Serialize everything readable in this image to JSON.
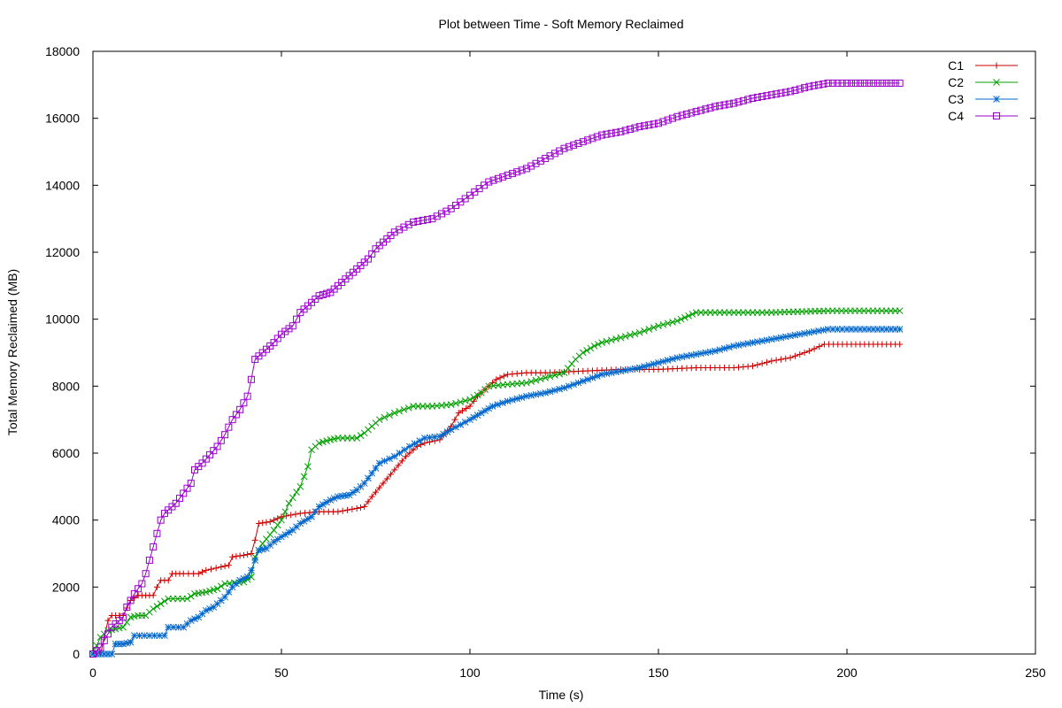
{
  "chart_data": {
    "type": "line",
    "title": "Plot between Time - Soft Memory Reclaimed",
    "xlabel": "Time (s)",
    "ylabel": "Total Memory Reclaimed (MB)",
    "xlim": [
      0,
      250
    ],
    "ylim": [
      0,
      18000
    ],
    "xticks": [
      0,
      50,
      100,
      150,
      200,
      250
    ],
    "yticks": [
      0,
      2000,
      4000,
      6000,
      8000,
      10000,
      12000,
      14000,
      16000,
      18000
    ],
    "grid": false,
    "legend_position": "top-right",
    "series": [
      {
        "name": "C1",
        "color": "#cc0000",
        "marker": "plus",
        "points": [
          [
            0,
            0
          ],
          [
            2,
            0
          ],
          [
            3,
            500
          ],
          [
            4,
            1000
          ],
          [
            5,
            1150
          ],
          [
            7,
            1150
          ],
          [
            8,
            1150
          ],
          [
            10,
            1600
          ],
          [
            12,
            1750
          ],
          [
            14,
            1750
          ],
          [
            16,
            1750
          ],
          [
            17,
            2000
          ],
          [
            18,
            2200
          ],
          [
            20,
            2200
          ],
          [
            21,
            2400
          ],
          [
            24,
            2400
          ],
          [
            28,
            2400
          ],
          [
            30,
            2500
          ],
          [
            34,
            2600
          ],
          [
            36,
            2650
          ],
          [
            37,
            2900
          ],
          [
            40,
            2950
          ],
          [
            42,
            3000
          ],
          [
            43,
            3400
          ],
          [
            44,
            3900
          ],
          [
            47,
            3950
          ],
          [
            50,
            4100
          ],
          [
            55,
            4200
          ],
          [
            60,
            4250
          ],
          [
            65,
            4250
          ],
          [
            70,
            4350
          ],
          [
            72,
            4400
          ],
          [
            74,
            4700
          ],
          [
            77,
            5100
          ],
          [
            80,
            5500
          ],
          [
            83,
            5900
          ],
          [
            86,
            6200
          ],
          [
            88,
            6300
          ],
          [
            92,
            6400
          ],
          [
            95,
            6800
          ],
          [
            97,
            7200
          ],
          [
            100,
            7400
          ],
          [
            102,
            7700
          ],
          [
            105,
            8000
          ],
          [
            107,
            8200
          ],
          [
            110,
            8350
          ],
          [
            115,
            8400
          ],
          [
            120,
            8400
          ],
          [
            130,
            8450
          ],
          [
            140,
            8500
          ],
          [
            150,
            8500
          ],
          [
            160,
            8550
          ],
          [
            170,
            8550
          ],
          [
            175,
            8600
          ],
          [
            180,
            8750
          ],
          [
            185,
            8850
          ],
          [
            190,
            9050
          ],
          [
            194,
            9250
          ],
          [
            200,
            9250
          ],
          [
            214,
            9250
          ]
        ]
      },
      {
        "name": "C2",
        "color": "#00a000",
        "marker": "x",
        "points": [
          [
            0,
            0
          ],
          [
            2,
            500
          ],
          [
            4,
            700
          ],
          [
            6,
            750
          ],
          [
            8,
            800
          ],
          [
            10,
            1100
          ],
          [
            12,
            1150
          ],
          [
            14,
            1150
          ],
          [
            16,
            1350
          ],
          [
            18,
            1500
          ],
          [
            20,
            1650
          ],
          [
            25,
            1650
          ],
          [
            27,
            1800
          ],
          [
            30,
            1850
          ],
          [
            33,
            1950
          ],
          [
            35,
            2100
          ],
          [
            40,
            2150
          ],
          [
            42,
            2300
          ],
          [
            43,
            2900
          ],
          [
            45,
            3300
          ],
          [
            48,
            3700
          ],
          [
            50,
            4000
          ],
          [
            52,
            4500
          ],
          [
            55,
            5000
          ],
          [
            57,
            5600
          ],
          [
            58,
            6100
          ],
          [
            60,
            6300
          ],
          [
            63,
            6400
          ],
          [
            65,
            6450
          ],
          [
            70,
            6450
          ],
          [
            72,
            6600
          ],
          [
            74,
            6800
          ],
          [
            76,
            7000
          ],
          [
            80,
            7200
          ],
          [
            85,
            7400
          ],
          [
            90,
            7400
          ],
          [
            95,
            7450
          ],
          [
            100,
            7600
          ],
          [
            103,
            7800
          ],
          [
            105,
            8000
          ],
          [
            110,
            8050
          ],
          [
            115,
            8100
          ],
          [
            120,
            8250
          ],
          [
            125,
            8400
          ],
          [
            128,
            8800
          ],
          [
            130,
            9000
          ],
          [
            133,
            9200
          ],
          [
            135,
            9300
          ],
          [
            140,
            9450
          ],
          [
            145,
            9600
          ],
          [
            150,
            9800
          ],
          [
            155,
            9950
          ],
          [
            158,
            10100
          ],
          [
            160,
            10200
          ],
          [
            170,
            10200
          ],
          [
            180,
            10200
          ],
          [
            195,
            10250
          ],
          [
            214,
            10250
          ]
        ]
      },
      {
        "name": "C3",
        "color": "#0066cc",
        "marker": "star",
        "points": [
          [
            0,
            0
          ],
          [
            3,
            0
          ],
          [
            5,
            0
          ],
          [
            6,
            300
          ],
          [
            8,
            300
          ],
          [
            10,
            350
          ],
          [
            11,
            550
          ],
          [
            15,
            550
          ],
          [
            19,
            550
          ],
          [
            20,
            800
          ],
          [
            24,
            800
          ],
          [
            26,
            1000
          ],
          [
            28,
            1100
          ],
          [
            30,
            1300
          ],
          [
            32,
            1400
          ],
          [
            35,
            1700
          ],
          [
            37,
            2000
          ],
          [
            39,
            2200
          ],
          [
            41,
            2300
          ],
          [
            42,
            2500
          ],
          [
            43,
            2800
          ],
          [
            44,
            3100
          ],
          [
            46,
            3150
          ],
          [
            48,
            3350
          ],
          [
            50,
            3500
          ],
          [
            53,
            3700
          ],
          [
            55,
            3900
          ],
          [
            58,
            4100
          ],
          [
            60,
            4400
          ],
          [
            63,
            4600
          ],
          [
            65,
            4700
          ],
          [
            68,
            4750
          ],
          [
            70,
            4900
          ],
          [
            72,
            5100
          ],
          [
            74,
            5400
          ],
          [
            76,
            5700
          ],
          [
            80,
            5900
          ],
          [
            84,
            6200
          ],
          [
            88,
            6450
          ],
          [
            92,
            6500
          ],
          [
            95,
            6700
          ],
          [
            100,
            7000
          ],
          [
            103,
            7200
          ],
          [
            106,
            7400
          ],
          [
            110,
            7550
          ],
          [
            115,
            7700
          ],
          [
            120,
            7800
          ],
          [
            125,
            7950
          ],
          [
            130,
            8150
          ],
          [
            135,
            8350
          ],
          [
            140,
            8450
          ],
          [
            145,
            8550
          ],
          [
            150,
            8700
          ],
          [
            155,
            8850
          ],
          [
            160,
            8950
          ],
          [
            165,
            9050
          ],
          [
            170,
            9200
          ],
          [
            175,
            9300
          ],
          [
            180,
            9400
          ],
          [
            185,
            9500
          ],
          [
            190,
            9600
          ],
          [
            195,
            9700
          ],
          [
            200,
            9700
          ],
          [
            214,
            9700
          ]
        ]
      },
      {
        "name": "C4",
        "color": "#9900cc",
        "marker": "square",
        "points": [
          [
            0,
            0
          ],
          [
            2,
            200
          ],
          [
            3,
            400
          ],
          [
            4,
            600
          ],
          [
            5,
            800
          ],
          [
            6,
            900
          ],
          [
            8,
            1100
          ],
          [
            9,
            1400
          ],
          [
            10,
            1600
          ],
          [
            11,
            1800
          ],
          [
            12,
            1950
          ],
          [
            13,
            2100
          ],
          [
            14,
            2400
          ],
          [
            15,
            2800
          ],
          [
            16,
            3200
          ],
          [
            17,
            3600
          ],
          [
            18,
            4000
          ],
          [
            19,
            4200
          ],
          [
            20,
            4300
          ],
          [
            22,
            4500
          ],
          [
            24,
            4800
          ],
          [
            26,
            5100
          ],
          [
            27,
            5500
          ],
          [
            29,
            5700
          ],
          [
            31,
            5950
          ],
          [
            33,
            6200
          ],
          [
            35,
            6550
          ],
          [
            37,
            7000
          ],
          [
            39,
            7300
          ],
          [
            41,
            7700
          ],
          [
            42,
            8200
          ],
          [
            43,
            8800
          ],
          [
            45,
            9000
          ],
          [
            48,
            9300
          ],
          [
            50,
            9550
          ],
          [
            53,
            9800
          ],
          [
            55,
            10200
          ],
          [
            58,
            10500
          ],
          [
            60,
            10700
          ],
          [
            63,
            10800
          ],
          [
            65,
            11000
          ],
          [
            68,
            11300
          ],
          [
            70,
            11500
          ],
          [
            73,
            11800
          ],
          [
            75,
            12100
          ],
          [
            78,
            12400
          ],
          [
            80,
            12600
          ],
          [
            85,
            12900
          ],
          [
            90,
            13000
          ],
          [
            95,
            13300
          ],
          [
            100,
            13700
          ],
          [
            105,
            14100
          ],
          [
            110,
            14300
          ],
          [
            115,
            14500
          ],
          [
            120,
            14800
          ],
          [
            125,
            15100
          ],
          [
            130,
            15300
          ],
          [
            135,
            15500
          ],
          [
            140,
            15600
          ],
          [
            145,
            15750
          ],
          [
            150,
            15850
          ],
          [
            155,
            16050
          ],
          [
            160,
            16200
          ],
          [
            165,
            16350
          ],
          [
            170,
            16450
          ],
          [
            175,
            16600
          ],
          [
            180,
            16700
          ],
          [
            185,
            16800
          ],
          [
            190,
            16950
          ],
          [
            195,
            17050
          ],
          [
            200,
            17050
          ],
          [
            214,
            17050
          ]
        ]
      }
    ]
  }
}
